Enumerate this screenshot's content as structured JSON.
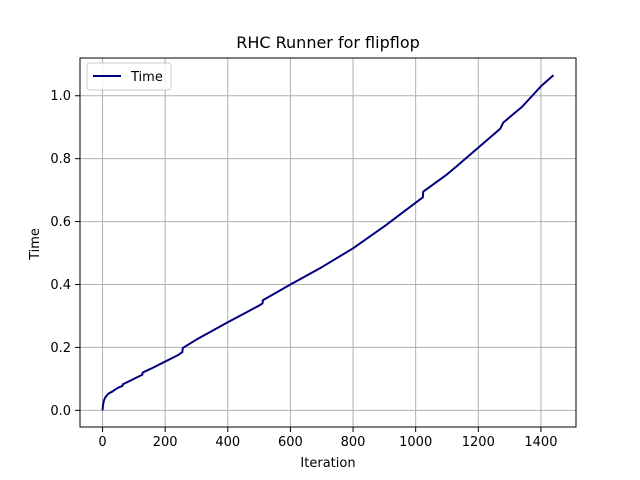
{
  "chart_data": {
    "type": "line",
    "title": "RHC Runner for flipflop",
    "xlabel": "Iteration",
    "ylabel": "Time",
    "xlim": [
      -72,
      1512
    ],
    "ylim": [
      -0.053,
      1.12
    ],
    "xticks": [
      0,
      200,
      400,
      600,
      800,
      1000,
      1200,
      1400
    ],
    "yticks": [
      0.0,
      0.2,
      0.4,
      0.6,
      0.8,
      1.0
    ],
    "xtick_labels": [
      "0",
      "200",
      "400",
      "600",
      "800",
      "1000",
      "1200",
      "1400"
    ],
    "ytick_labels": [
      "0.0",
      "0.2",
      "0.4",
      "0.6",
      "0.8",
      "1.0"
    ],
    "grid": true,
    "legend_position": "upper-left",
    "series": [
      {
        "name": "Time",
        "color": "#000080",
        "x": [
          0,
          1,
          2,
          4,
          8,
          12,
          16,
          20,
          28,
          32,
          40,
          50,
          64,
          65,
          80,
          100,
          127,
          128,
          160,
          200,
          240,
          255,
          256,
          300,
          400,
          500,
          511,
          512,
          600,
          700,
          800,
          900,
          1000,
          1023,
          1024,
          1100,
          1130,
          1200,
          1270,
          1280,
          1340,
          1400,
          1440
        ],
        "y": [
          0.0,
          0.012,
          0.02,
          0.03,
          0.04,
          0.045,
          0.05,
          0.054,
          0.058,
          0.06,
          0.066,
          0.072,
          0.078,
          0.083,
          0.09,
          0.1,
          0.113,
          0.12,
          0.135,
          0.155,
          0.175,
          0.185,
          0.198,
          0.225,
          0.28,
          0.333,
          0.34,
          0.35,
          0.4,
          0.455,
          0.515,
          0.585,
          0.66,
          0.677,
          0.695,
          0.75,
          0.775,
          0.835,
          0.895,
          0.915,
          0.965,
          1.03,
          1.065
        ]
      }
    ]
  }
}
